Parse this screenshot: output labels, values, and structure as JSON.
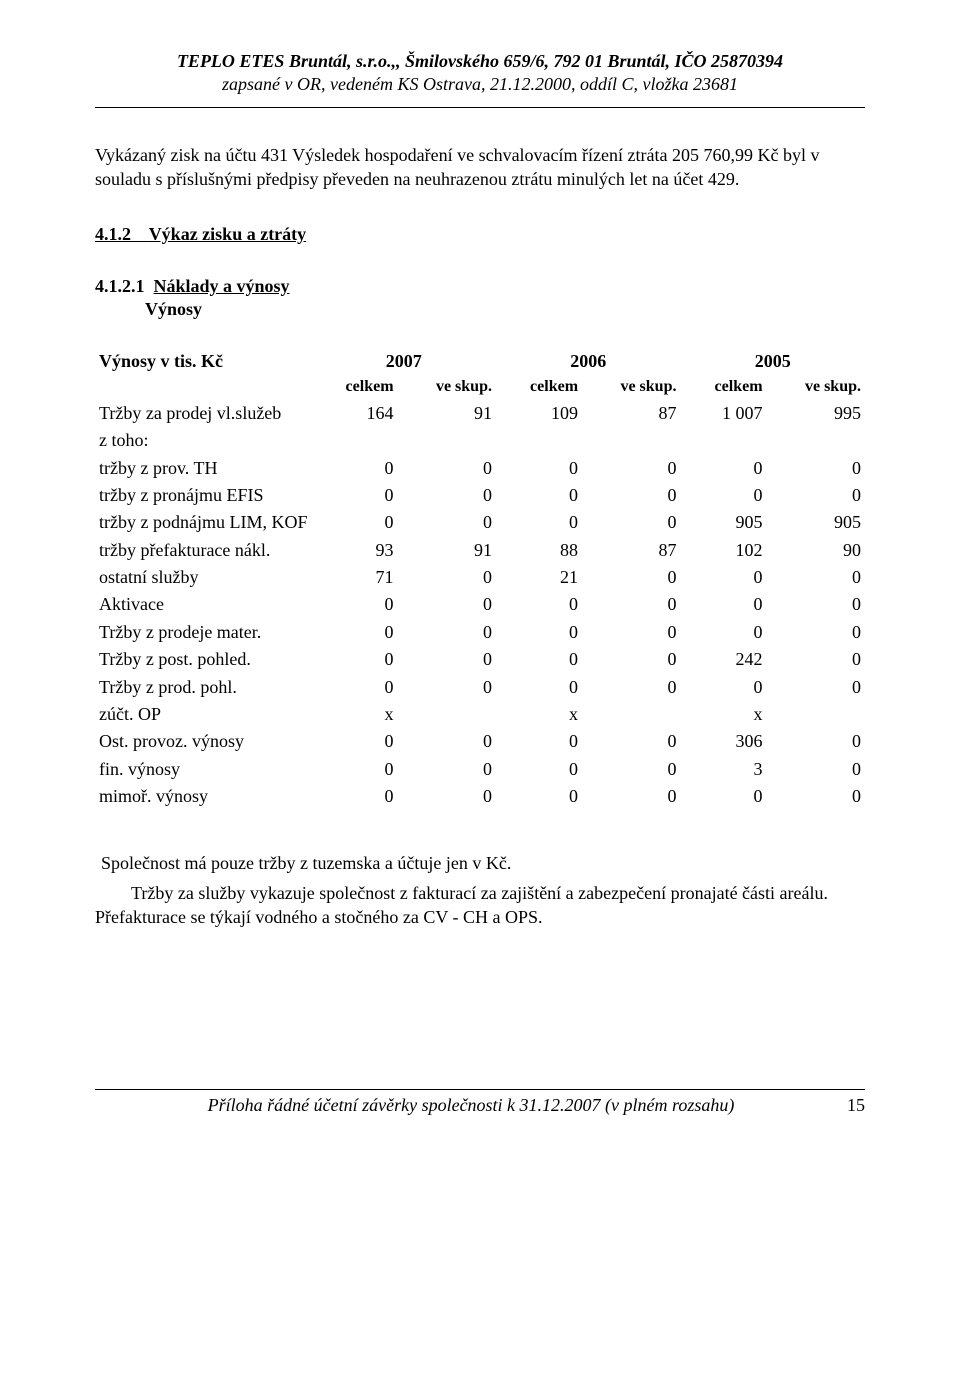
{
  "header": {
    "line1": "TEPLO ETES Bruntál, s.r.o.,, Šmilovského 659/6, 792 01 Bruntál, IČO 25870394",
    "line2": "zapsané v OR, vedeném KS Ostrava, 21.12.2000, oddíl C, vložka 23681"
  },
  "intro_para": "Vykázaný zisk  na účtu 431 Výsledek hospodaření ve schvalovacím řízení ztráta 205 760,99 Kč byl v souladu s příslušnými předpisy převeden na neuhrazenou ztrátu minulých let na účet 429.",
  "section_412": {
    "number": "4.1.2",
    "title": "Výkaz zisku a ztráty"
  },
  "section_4121": {
    "number": "4.1.2.1",
    "title1": "Náklady a výnosy",
    "title2": "Výnosy"
  },
  "table": {
    "heading_row_label": "Výnosy v tis. Kč",
    "year_headers": [
      "2007",
      "2006",
      "2005"
    ],
    "sub_headers": [
      "celkem",
      "ve skup.",
      "celkem",
      "ve skup.",
      "celkem",
      "ve skup."
    ],
    "rows": [
      {
        "label": "Tržby za prodej vl.služeb",
        "values": [
          "164",
          "91",
          "109",
          "87",
          "1 007",
          "995"
        ]
      },
      {
        "label": "z toho:",
        "values": [
          "",
          "",
          "",
          "",
          "",
          ""
        ]
      },
      {
        "label": "tržby z prov. TH",
        "values": [
          "0",
          "0",
          "0",
          "0",
          "0",
          "0"
        ]
      },
      {
        "label": "tržby z pronájmu EFIS",
        "values": [
          "0",
          "0",
          "0",
          "0",
          "0",
          "0"
        ]
      },
      {
        "label": "tržby z podnájmu LIM, KOF",
        "values": [
          "0",
          "0",
          "0",
          "0",
          "905",
          "905"
        ]
      },
      {
        "label": "tržby přefakturace nákl.",
        "values": [
          "93",
          "91",
          "88",
          "87",
          "102",
          "90"
        ]
      },
      {
        "label": "ostatní služby",
        "values": [
          "71",
          "0",
          "21",
          "0",
          "0",
          "0"
        ]
      },
      {
        "label": "Aktivace",
        "values": [
          "0",
          "0",
          "0",
          "0",
          "0",
          "0"
        ]
      },
      {
        "label": "Tržby z prodeje mater.",
        "values": [
          "0",
          "0",
          "0",
          "0",
          "0",
          "0"
        ]
      },
      {
        "label": "Tržby z post. pohled.",
        "values": [
          "0",
          "0",
          "0",
          "0",
          "242",
          "0"
        ]
      },
      {
        "label": "Tržby z prod. pohl.",
        "values": [
          "0",
          "0",
          "0",
          "0",
          "0",
          "0"
        ]
      },
      {
        "label": "zúčt. OP",
        "values": [
          "x",
          "",
          "x",
          "",
          "x",
          ""
        ]
      },
      {
        "label": "Ost. provoz. výnosy",
        "values": [
          "0",
          "0",
          "0",
          "0",
          "306",
          "0"
        ]
      },
      {
        "label": "fin. výnosy",
        "values": [
          "0",
          "0",
          "0",
          "0",
          "3",
          "0"
        ]
      },
      {
        "label": "mimoř. výnosy",
        "values": [
          "0",
          "0",
          "0",
          "0",
          "0",
          "0"
        ]
      }
    ]
  },
  "notes": {
    "p1": "Společnost má pouze tržby z tuzemska a účtuje jen v Kč.",
    "p2": "Tržby za služby vykazuje společnost z fakturací za zajištění a zabezpečení pronajaté části areálu. Přefakturace se týkají vodného a stočného za CV - CH a OPS."
  },
  "footer": {
    "text": "Příloha řádné účetní závěrky společnosti k 31.12.2007 (v plném rozsahu)",
    "page": "15"
  }
}
